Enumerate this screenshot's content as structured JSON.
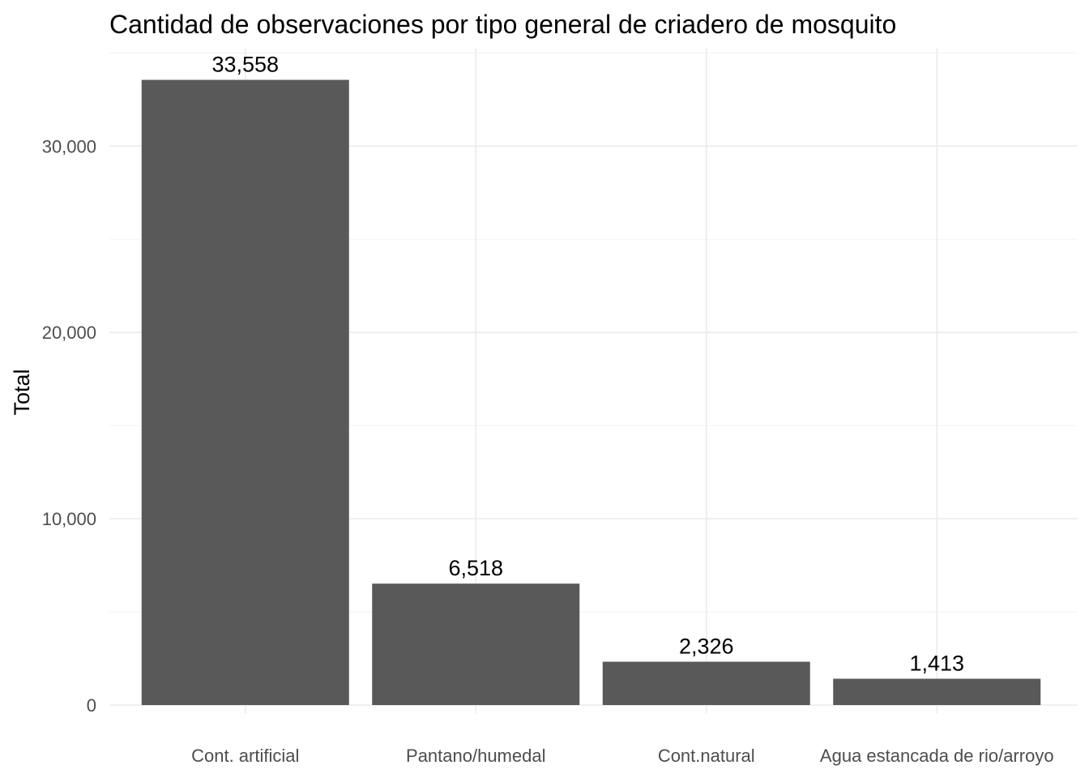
{
  "chart_data": {
    "type": "bar",
    "title": "Cantidad de observaciones por tipo general de criadero de mosquito",
    "xlabel": "",
    "ylabel": "Total",
    "categories": [
      "Cont. artificial",
      "Pantano/humedal",
      "Cont.natural",
      "Agua estancada de rio/arroyo"
    ],
    "values": [
      33558,
      6518,
      2326,
      1413
    ],
    "data_labels": [
      "33,558",
      "6,518",
      "2,326",
      "1,413"
    ],
    "yticks": [
      0,
      10000,
      20000,
      30000
    ],
    "ytick_labels": [
      "0",
      "10,000",
      "20,000",
      "30,000"
    ],
    "ylim": [
      0,
      35235
    ],
    "grid": true,
    "legend": "none",
    "bar_color": "#595959"
  }
}
